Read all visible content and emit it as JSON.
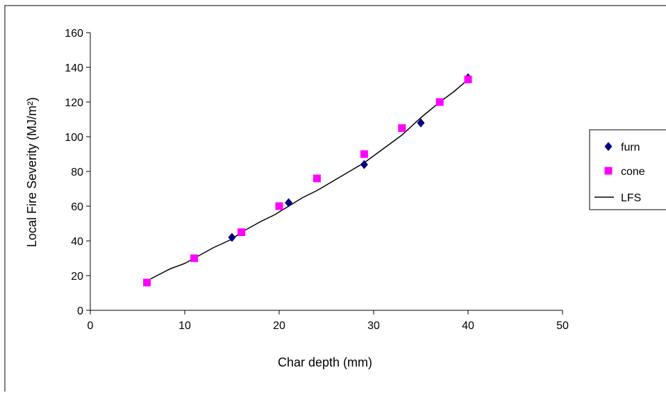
{
  "chart_data": {
    "type": "scatter",
    "xlabel": "Char depth (mm)",
    "ylabel": "Local Fire Severity (MJ/m²)",
    "xlim": [
      0,
      50
    ],
    "ylim": [
      0,
      160
    ],
    "x_ticks": [
      "0",
      "10",
      "20",
      "30",
      "40",
      "50"
    ],
    "y_ticks": [
      "0",
      "20",
      "40",
      "60",
      "80",
      "100",
      "120",
      "140",
      "160"
    ],
    "grid": false,
    "legend_position": "right",
    "series": [
      {
        "name": "furn",
        "kind": "markers",
        "marker": "diamond",
        "color": "#000080",
        "x": [
          15,
          21,
          29,
          35,
          40
        ],
        "y": [
          42,
          62,
          84,
          108,
          134
        ]
      },
      {
        "name": "cone",
        "kind": "markers",
        "marker": "square",
        "color": "#ff00ff",
        "x": [
          6,
          11,
          16,
          20,
          24,
          29,
          33,
          37,
          40
        ],
        "y": [
          16,
          30,
          45,
          60,
          76,
          90,
          105,
          120,
          133
        ]
      },
      {
        "name": "LFS",
        "kind": "line",
        "color": "#000000",
        "x": [
          6,
          8.5,
          10,
          11,
          13,
          15,
          16,
          18,
          19.5,
          21,
          22.5,
          24,
          26.5,
          29,
          31,
          33,
          35,
          37,
          38.5,
          40
        ],
        "y": [
          17,
          24,
          27,
          30,
          36,
          41,
          45,
          51,
          55,
          60,
          65,
          69,
          77,
          85,
          93,
          101,
          111,
          120,
          126,
          133
        ]
      }
    ]
  }
}
